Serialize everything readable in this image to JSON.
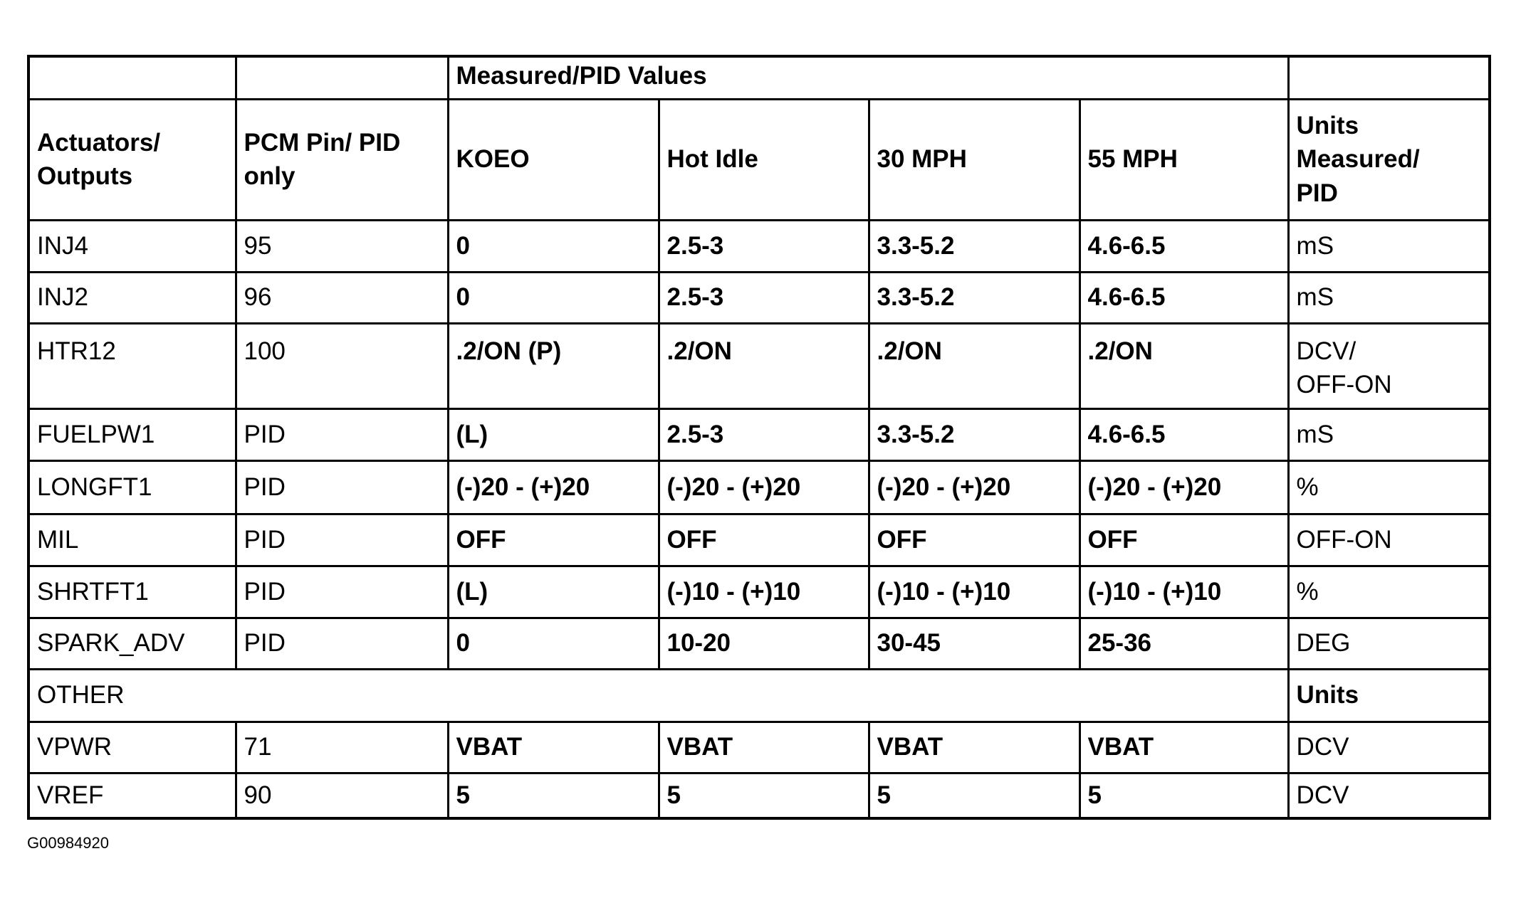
{
  "table": {
    "group_header": "Measured/PID Values",
    "headers": [
      "Actuators/\nOutputs",
      "PCM Pin/ PID\nonly",
      "KOEO",
      "Hot Idle",
      "30 MPH",
      "55 MPH",
      "Units\nMeasured/\nPID"
    ],
    "rows": [
      [
        "INJ4",
        "95",
        "0",
        "2.5-3",
        "3.3-5.2",
        "4.6-6.5",
        "mS"
      ],
      [
        "INJ2",
        "96",
        "0",
        "2.5-3",
        "3.3-5.2",
        "4.6-6.5",
        "mS"
      ],
      [
        "HTR12",
        "100",
        ".2/ON (P)",
        ".2/ON",
        ".2/ON",
        ".2/ON",
        "DCV/\nOFF-ON"
      ],
      [
        "FUELPW1",
        "PID",
        "(L)",
        "2.5-3",
        "3.3-5.2",
        "4.6-6.5",
        "mS"
      ],
      [
        "LONGFT1",
        "PID",
        "(-)20 - (+)20",
        "(-)20 - (+)20",
        "(-)20 - (+)20",
        "(-)20 - (+)20",
        "%"
      ],
      [
        "MIL",
        "PID",
        "OFF",
        "OFF",
        "OFF",
        "OFF",
        "OFF-ON"
      ],
      [
        "SHRTFT1",
        "PID",
        "(L)",
        "(-)10 - (+)10",
        "(-)10 - (+)10",
        "(-)10 - (+)10",
        "%"
      ],
      [
        "SPARK_ADV",
        "PID",
        "0",
        "10-20",
        "30-45",
        "25-36",
        "DEG"
      ]
    ],
    "other_label": "OTHER",
    "other_units_label": "Units",
    "other_rows": [
      [
        "VPWR",
        "71",
        "VBAT",
        "VBAT",
        "VBAT",
        "VBAT",
        "DCV"
      ],
      [
        "VREF",
        "90",
        "5",
        "5",
        "5",
        "5",
        "DCV"
      ]
    ]
  },
  "caption": "G00984920"
}
